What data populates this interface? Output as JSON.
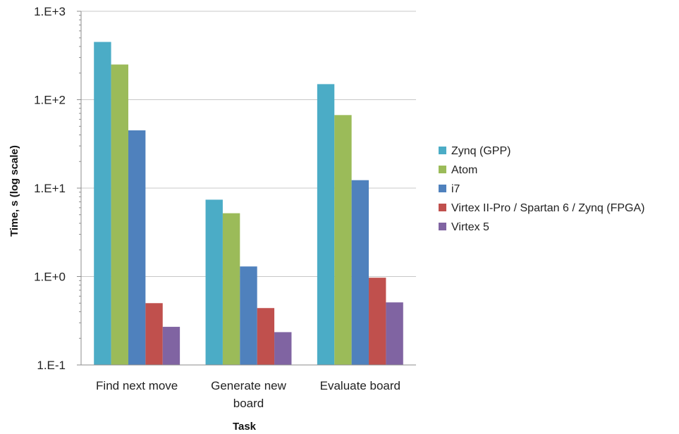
{
  "chart_data": {
    "type": "bar",
    "title": "",
    "xlabel": "Task",
    "ylabel": "Time, s (log scale)",
    "yscale": "log",
    "ylim": [
      0.1,
      1000
    ],
    "yticks": [
      0.1,
      1,
      10,
      100,
      1000
    ],
    "ytick_labels": [
      "1.E-1",
      "1.E+0",
      "1.E+1",
      "1.E+2",
      "1.E+3"
    ],
    "categories": [
      "Find next move",
      "Generate new board",
      "Evaluate board"
    ],
    "category_lines": [
      [
        "Find next move"
      ],
      [
        "Generate new",
        "board"
      ],
      [
        "Evaluate board"
      ]
    ],
    "series": [
      {
        "name": "Zynq (GPP)",
        "color": "#4BACC6",
        "values": [
          450,
          7.4,
          150
        ]
      },
      {
        "name": "Atom",
        "color": "#9BBB59",
        "values": [
          250,
          5.2,
          67
        ]
      },
      {
        "name": "i7",
        "color": "#4F81BD",
        "values": [
          45,
          1.3,
          12.3
        ]
      },
      {
        "name": "Virtex II-Pro / Spartan 6 / Zynq (FPGA)",
        "color": "#C0504D",
        "values": [
          0.5,
          0.44,
          0.97
        ]
      },
      {
        "name": "Virtex 5",
        "color": "#8064A2",
        "values": [
          0.27,
          0.235,
          0.51
        ]
      }
    ],
    "grid": true,
    "legend_position": "right"
  }
}
